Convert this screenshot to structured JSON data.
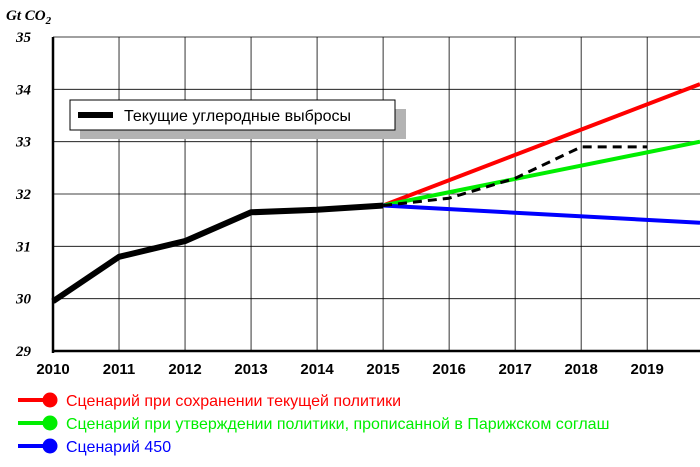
{
  "chart_data": {
    "type": "line",
    "unit_label": "Gt CO",
    "unit_subscript": "2",
    "x": [
      2010,
      2011,
      2012,
      2013,
      2014,
      2015,
      2016,
      2017,
      2018,
      2019
    ],
    "xlim": [
      2010,
      2019.8
    ],
    "ylim": [
      29,
      35
    ],
    "yticks": [
      "29",
      "30",
      "31",
      "32",
      "33",
      "34",
      "35"
    ],
    "grid": true,
    "series": [
      {
        "name": "Текущие углеродные выбросы",
        "color": "#000000",
        "style": "solid",
        "x": [
          2010,
          2011,
          2012,
          2013,
          2014,
          2015
        ],
        "y": [
          29.95,
          30.8,
          31.1,
          31.65,
          31.7,
          31.78
        ]
      },
      {
        "name": "Сценарий при сохранении текущей политики",
        "color": "#ff0000",
        "style": "solid",
        "x": [
          2015,
          2019.8
        ],
        "y": [
          31.78,
          34.1
        ]
      },
      {
        "name": "Сценарий при утверждении политики, прописанной в Парижском соглаш",
        "color": "#00ee00",
        "style": "solid",
        "x": [
          2015,
          2019.8
        ],
        "y": [
          31.78,
          33.0
        ]
      },
      {
        "name": "Сценарий 450",
        "color": "#0000ff",
        "style": "solid",
        "x": [
          2015,
          2019.8
        ],
        "y": [
          31.78,
          31.45
        ]
      },
      {
        "name": "",
        "color": "#000000",
        "style": "dashed",
        "x": [
          2015,
          2016,
          2017,
          2018,
          2019
        ],
        "y": [
          31.78,
          31.92,
          32.3,
          32.9,
          32.9
        ]
      }
    ],
    "inner_legend": "Текущие углеродные выбросы",
    "legend": [
      {
        "label": "Сценарий при сохранении текущей политики",
        "color": "#ff0000"
      },
      {
        "label": "Сценарий при утверждении политики, прописанной в Парижском соглаш",
        "color": "#00ee00"
      },
      {
        "label": "Сценарий 450",
        "color": "#0000ff"
      }
    ]
  }
}
